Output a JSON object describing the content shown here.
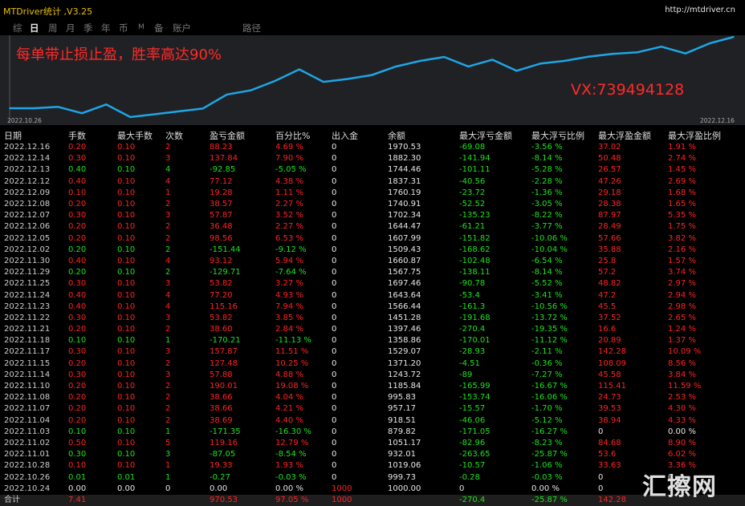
{
  "titlebar": {
    "title": "MTDriver统计 ,V3.25",
    "url": "http://mtdriver.cn"
  },
  "tabs": [
    {
      "label": "综",
      "active": false
    },
    {
      "label": "日",
      "active": true
    },
    {
      "label": "周",
      "active": false
    },
    {
      "label": "月",
      "active": false
    },
    {
      "label": "季",
      "active": false
    },
    {
      "label": "年",
      "active": false
    },
    {
      "label": "币",
      "active": false
    },
    {
      "label": "M",
      "active": false
    },
    {
      "label": "备",
      "active": false
    },
    {
      "label": "账户",
      "active": false
    },
    {
      "label": "路径",
      "active": false
    }
  ],
  "chart": {
    "promo": "每单带止损止盈，胜率高达90%",
    "contact": "VX:739494128",
    "start_date": "2022.10.26",
    "end_date": "2022.12.16",
    "line_color": "#1da6e6"
  },
  "chart_data": {
    "type": "line",
    "x": [
      "2022.10.24",
      "2022.10.26",
      "2022.10.28",
      "2022.11.01",
      "2022.11.02",
      "2022.11.03",
      "2022.11.04",
      "2022.11.07",
      "2022.11.08",
      "2022.11.10",
      "2022.11.14",
      "2022.11.15",
      "2022.11.17",
      "2022.11.18",
      "2022.11.21",
      "2022.11.22",
      "2022.11.23",
      "2022.11.24",
      "2022.11.25",
      "2022.11.29",
      "2022.11.30",
      "2022.12.02",
      "2022.12.05",
      "2022.12.06",
      "2022.12.07",
      "2022.12.08",
      "2022.12.09",
      "2022.12.12",
      "2022.12.13",
      "2022.12.14",
      "2022.12.16"
    ],
    "y": [
      1000.0,
      999.73,
      1019.06,
      932.01,
      1051.17,
      879.82,
      918.51,
      957.17,
      995.83,
      1185.84,
      1243.72,
      1371.2,
      1529.07,
      1358.86,
      1397.46,
      1451.28,
      1566.44,
      1643.64,
      1697.46,
      1567.75,
      1660.87,
      1509.43,
      1607.99,
      1644.47,
      1702.34,
      1740.91,
      1760.19,
      1837.31,
      1744.46,
      1882.3,
      1970.53
    ],
    "title": "",
    "xlabel": "",
    "ylabel": ""
  },
  "table": {
    "headers": [
      "日期",
      "手数",
      "最大手数",
      "次数",
      "盈亏金额",
      "百分比%",
      "出入金",
      "余额",
      "最大浮亏金额",
      "最大浮亏比例",
      "最大浮盈金额",
      "最大浮盈比例"
    ],
    "rows": [
      [
        "2022.12.16",
        "0.20",
        "0.10",
        "2",
        "88.23",
        "4.69 %",
        "0",
        "1970.53",
        "-69.08",
        "-3.56 %",
        "37.02",
        "1.91 %"
      ],
      [
        "2022.12.14",
        "0.30",
        "0.10",
        "3",
        "137.84",
        "7.90 %",
        "0",
        "1882.30",
        "-141.94",
        "-8.14 %",
        "50.48",
        "2.74 %"
      ],
      [
        "2022.12.13",
        "0.40",
        "0.10",
        "4",
        "-92.85",
        "-5.05 %",
        "0",
        "1744.46",
        "-101.11",
        "-5.28 %",
        "26.57",
        "1.45 %"
      ],
      [
        "2022.12.12",
        "0.40",
        "0.10",
        "4",
        "77.12",
        "4.38 %",
        "0",
        "1837.31",
        "-40.56",
        "-2.28 %",
        "47.26",
        "2.69 %"
      ],
      [
        "2022.12.09",
        "0.10",
        "0.10",
        "1",
        "19.28",
        "1.11 %",
        "0",
        "1760.19",
        "-23.72",
        "-1.36 %",
        "29.18",
        "1.68 %"
      ],
      [
        "2022.12.08",
        "0.20",
        "0.10",
        "2",
        "38.57",
        "2.27 %",
        "0",
        "1740.91",
        "-52.52",
        "-3.05 %",
        "28.38",
        "1.65 %"
      ],
      [
        "2022.12.07",
        "0.30",
        "0.10",
        "3",
        "57.87",
        "3.52 %",
        "0",
        "1702.34",
        "-135.23",
        "-8.22 %",
        "87.97",
        "5.35 %"
      ],
      [
        "2022.12.06",
        "0.20",
        "0.10",
        "2",
        "36.48",
        "2.27 %",
        "0",
        "1644.47",
        "-61.21",
        "-3.77 %",
        "28.49",
        "1.75 %"
      ],
      [
        "2022.12.05",
        "0.20",
        "0.10",
        "2",
        "98.56",
        "6.53 %",
        "0",
        "1607.99",
        "-151.82",
        "-10.06 %",
        "57.66",
        "3.82 %"
      ],
      [
        "2022.12.02",
        "0.20",
        "0.10",
        "2",
        "-151.44",
        "-9.12 %",
        "0",
        "1509.43",
        "-168.62",
        "-10.04 %",
        "35.88",
        "2.16 %"
      ],
      [
        "2022.11.30",
        "0.40",
        "0.10",
        "4",
        "93.12",
        "5.94 %",
        "0",
        "1660.87",
        "-102.48",
        "-6.54 %",
        "25.8",
        "1.57 %"
      ],
      [
        "2022.11.29",
        "0.20",
        "0.10",
        "2",
        "-129.71",
        "-7.64 %",
        "0",
        "1567.75",
        "-138.11",
        "-8.14 %",
        "57.2",
        "3.74 %"
      ],
      [
        "2022.11.25",
        "0.30",
        "0.10",
        "3",
        "53.82",
        "3.27 %",
        "0",
        "1697.46",
        "-90.78",
        "-5.52 %",
        "48.82",
        "2.97 %"
      ],
      [
        "2022.11.24",
        "0.40",
        "0.10",
        "4",
        "77.20",
        "4.93 %",
        "0",
        "1643.64",
        "-53.4",
        "-3.41 %",
        "47.2",
        "2.94 %"
      ],
      [
        "2022.11.23",
        "0.40",
        "0.10",
        "4",
        "115.16",
        "7.94 %",
        "0",
        "1566.44",
        "-161.3",
        "-10.56 %",
        "45.5",
        "2.98 %"
      ],
      [
        "2022.11.22",
        "0.30",
        "0.10",
        "3",
        "53.82",
        "3.85 %",
        "0",
        "1451.28",
        "-191.68",
        "-13.72 %",
        "37.52",
        "2.65 %"
      ],
      [
        "2022.11.21",
        "0.20",
        "0.10",
        "2",
        "38.60",
        "2.84 %",
        "0",
        "1397.46",
        "-270.4",
        "-19.35 %",
        "16.6",
        "1.24 %"
      ],
      [
        "2022.11.18",
        "0.10",
        "0.10",
        "1",
        "-170.21",
        "-11.13 %",
        "0",
        "1358.86",
        "-170.01",
        "-11.12 %",
        "20.89",
        "1.37 %"
      ],
      [
        "2022.11.17",
        "0.30",
        "0.10",
        "3",
        "157.87",
        "11.51 %",
        "0",
        "1529.07",
        "-28.93",
        "-2.11 %",
        "142.28",
        "10.09 %"
      ],
      [
        "2022.11.15",
        "0.20",
        "0.10",
        "2",
        "127.48",
        "10.25 %",
        "0",
        "1371.20",
        "-4.51",
        "-0.36 %",
        "108.09",
        "8.56 %"
      ],
      [
        "2022.11.14",
        "0.30",
        "0.10",
        "3",
        "57.88",
        "4.88 %",
        "0",
        "1243.72",
        "-89",
        "-7.27 %",
        "45.58",
        "3.84 %"
      ],
      [
        "2022.11.10",
        "0.20",
        "0.10",
        "2",
        "190.01",
        "19.08 %",
        "0",
        "1185.84",
        "-165.99",
        "-16.67 %",
        "115.41",
        "11.59 %"
      ],
      [
        "2022.11.08",
        "0.20",
        "0.10",
        "2",
        "38.66",
        "4.04 %",
        "0",
        "995.83",
        "-153.74",
        "-16.06 %",
        "24.73",
        "2.53 %"
      ],
      [
        "2022.11.07",
        "0.20",
        "0.10",
        "2",
        "38.66",
        "4.21 %",
        "0",
        "957.17",
        "-15.57",
        "-1.70 %",
        "39.53",
        "4.30 %"
      ],
      [
        "2022.11.04",
        "0.20",
        "0.10",
        "2",
        "38.69",
        "4.40 %",
        "0",
        "918.51",
        "-46.06",
        "-5.12 %",
        "38.94",
        "4.33 %"
      ],
      [
        "2022.11.03",
        "0.10",
        "0.10",
        "1",
        "-171.35",
        "-16.30 %",
        "0",
        "879.82",
        "-171.05",
        "-16.27 %",
        "0",
        "0.00 %"
      ],
      [
        "2022.11.02",
        "0.50",
        "0.10",
        "5",
        "119.16",
        "12.79 %",
        "0",
        "1051.17",
        "-82.96",
        "-8.23 %",
        "84.68",
        "8.90 %"
      ],
      [
        "2022.11.01",
        "0.30",
        "0.10",
        "3",
        "-87.05",
        "-8.54 %",
        "0",
        "932.01",
        "-263.65",
        "-25.87 %",
        "53.6",
        "6.02 %"
      ],
      [
        "2022.10.28",
        "0.10",
        "0.10",
        "1",
        "19.33",
        "1.93 %",
        "0",
        "1019.06",
        "-10.57",
        "-1.06 %",
        "33.63",
        "3.36 %"
      ],
      [
        "2022.10.26",
        "0.01",
        "0.01",
        "1",
        "-0.27",
        "-0.03 %",
        "0",
        "999.73",
        "-0.28",
        "-0.03 %",
        "0",
        "0"
      ],
      [
        "2022.10.24",
        "0.00",
        "0.00",
        "0",
        "0.00",
        "0.00 %",
        "1000",
        "1000.00",
        "0",
        "0.00 %",
        "0",
        "0"
      ]
    ],
    "total": [
      "合计",
      "7.41",
      "",
      "",
      "970.53",
      "97.05 %",
      "1000",
      "",
      "-270.4",
      "-25.87 %",
      "142.28",
      ""
    ]
  },
  "watermark": "汇擦网"
}
